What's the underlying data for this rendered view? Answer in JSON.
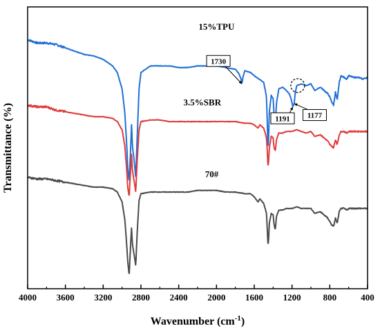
{
  "chart_data": {
    "type": "line",
    "xlabel": "Wavenumber (cm",
    "xlabel_sup": "-1",
    "xlabel_end": ")",
    "ylabel": "Transmittance (%)",
    "xlim": [
      4000,
      400
    ],
    "x_reversed": true,
    "x_ticks": [
      4000,
      3600,
      3200,
      2800,
      2400,
      2000,
      1600,
      1200,
      800,
      400
    ],
    "y_ticks_shown": false,
    "grid": false,
    "legend": "none",
    "series": [
      {
        "name": "15%TPU",
        "color": "#1f6fd6",
        "baseline": 9.0,
        "x": [
          4000,
          3900,
          3800,
          3700,
          3600,
          3500,
          3400,
          3300,
          3200,
          3100,
          3050,
          3000,
          2970,
          2950,
          2940,
          2925,
          2910,
          2900,
          2890,
          2870,
          2855,
          2840,
          2820,
          2800,
          2700,
          2600,
          2500,
          2400,
          2300,
          2200,
          2100,
          2000,
          1900,
          1800,
          1760,
          1740,
          1730,
          1720,
          1700,
          1640,
          1600,
          1500,
          1470,
          1460,
          1455,
          1450,
          1440,
          1420,
          1400,
          1390,
          1377,
          1365,
          1340,
          1300,
          1260,
          1230,
          1210,
          1191,
          1177,
          1165,
          1150,
          1100,
          1050,
          1000,
          960,
          900,
          860,
          820,
          800,
          780,
          760,
          740,
          721,
          700,
          680,
          650,
          620,
          600,
          550,
          500,
          450,
          400
        ],
        "values": [
          9.0,
          8.8,
          8.8,
          8.7,
          8.5,
          8.3,
          8.1,
          8.0,
          7.8,
          7.4,
          7.0,
          6.0,
          4.5,
          2.5,
          1.2,
          0.3,
          2.2,
          3.8,
          2.5,
          1.5,
          0.6,
          3.0,
          6.0,
          7.0,
          7.4,
          7.4,
          7.4,
          7.3,
          7.3,
          7.4,
          7.4,
          7.4,
          7.3,
          7.2,
          6.9,
          6.6,
          6.3,
          6.7,
          7.1,
          7.0,
          6.8,
          6.4,
          5.5,
          3.5,
          2.5,
          2.6,
          4.6,
          5.6,
          5.4,
          4.4,
          3.8,
          5.1,
          6.0,
          6.1,
          5.9,
          5.7,
          5.4,
          4.9,
          5.1,
          5.8,
          6.2,
          6.3,
          6.2,
          6.3,
          5.9,
          6.1,
          5.9,
          5.7,
          5.5,
          5.2,
          5.0,
          5.8,
          5.3,
          6.4,
          6.8,
          6.7,
          6.6,
          6.8,
          6.7,
          6.7,
          6.6,
          6.7
        ]
      },
      {
        "name": "3.5%SBR",
        "color": "#e03a3a",
        "baseline": 4.5,
        "x": [
          4000,
          3900,
          3800,
          3700,
          3600,
          3500,
          3400,
          3300,
          3200,
          3100,
          3050,
          3000,
          2970,
          2950,
          2940,
          2925,
          2910,
          2900,
          2890,
          2870,
          2855,
          2840,
          2820,
          2800,
          2700,
          2600,
          2500,
          2400,
          2300,
          2200,
          2100,
          2000,
          1900,
          1800,
          1700,
          1640,
          1600,
          1560,
          1540,
          1500,
          1470,
          1460,
          1455,
          1450,
          1440,
          1420,
          1400,
          1390,
          1377,
          1365,
          1340,
          1300,
          1260,
          1200,
          1150,
          1100,
          1050,
          1000,
          960,
          900,
          860,
          820,
          800,
          780,
          760,
          740,
          721,
          700,
          680,
          650,
          620,
          600,
          550,
          500,
          450,
          400
        ],
        "values": [
          5.0,
          4.9,
          4.9,
          4.7,
          4.6,
          4.5,
          4.4,
          4.3,
          4.3,
          4.2,
          4.0,
          3.5,
          2.5,
          1.0,
          0.0,
          -0.6,
          1.0,
          2.0,
          1.0,
          0.3,
          -0.3,
          1.6,
          3.5,
          4.0,
          4.1,
          4.1,
          4.0,
          4.0,
          4.0,
          4.0,
          4.0,
          4.0,
          4.0,
          4.0,
          3.9,
          3.9,
          3.8,
          3.6,
          3.8,
          3.6,
          3.0,
          2.0,
          1.3,
          1.4,
          2.4,
          3.1,
          3.0,
          2.4,
          2.2,
          2.9,
          3.3,
          3.3,
          3.4,
          3.4,
          3.5,
          3.4,
          3.3,
          3.4,
          3.1,
          3.2,
          3.0,
          2.8,
          2.6,
          2.5,
          2.4,
          2.9,
          2.6,
          3.2,
          3.4,
          3.4,
          3.3,
          3.4,
          3.4,
          3.4,
          3.4,
          3.4
        ]
      },
      {
        "name": "70#",
        "color": "#4a4a4a",
        "baseline": 0.0,
        "x": [
          4000,
          3900,
          3800,
          3700,
          3600,
          3500,
          3400,
          3300,
          3200,
          3100,
          3050,
          3000,
          2970,
          2950,
          2940,
          2925,
          2910,
          2900,
          2890,
          2870,
          2855,
          2840,
          2820,
          2800,
          2700,
          2600,
          2500,
          2400,
          2300,
          2200,
          2100,
          2000,
          1900,
          1800,
          1700,
          1640,
          1600,
          1560,
          1540,
          1500,
          1470,
          1460,
          1455,
          1450,
          1440,
          1420,
          1400,
          1390,
          1377,
          1365,
          1340,
          1300,
          1260,
          1200,
          1150,
          1100,
          1050,
          1000,
          960,
          900,
          860,
          820,
          800,
          780,
          760,
          740,
          721,
          700,
          680,
          650,
          620,
          600,
          550,
          500,
          450,
          400
        ],
        "values": [
          0.6,
          0.5,
          0.5,
          0.4,
          0.3,
          0.2,
          0.1,
          0.0,
          0.0,
          -0.1,
          -0.3,
          -0.9,
          -2.0,
          -3.6,
          -4.5,
          -5.4,
          -3.6,
          -2.5,
          -3.5,
          -4.2,
          -4.8,
          -2.8,
          -0.8,
          -0.4,
          -0.3,
          -0.3,
          -0.3,
          -0.3,
          -0.3,
          -0.2,
          -0.2,
          -0.2,
          -0.3,
          -0.3,
          -0.4,
          -0.4,
          -0.6,
          -0.9,
          -0.7,
          -1.0,
          -1.6,
          -2.8,
          -3.5,
          -3.4,
          -2.2,
          -1.6,
          -1.7,
          -2.3,
          -2.6,
          -1.8,
          -1.4,
          -1.4,
          -1.3,
          -1.3,
          -1.2,
          -1.3,
          -1.3,
          -1.3,
          -1.6,
          -1.5,
          -1.7,
          -1.9,
          -2.1,
          -2.3,
          -2.4,
          -1.9,
          -2.2,
          -1.5,
          -1.3,
          -1.3,
          -1.4,
          -1.3,
          -1.3,
          -1.3,
          -1.3,
          -1.3
        ]
      }
    ],
    "series_labels": [
      {
        "text": "15%TPU",
        "x": 2000,
        "y": 9.6
      },
      {
        "text": "3.5%SBR",
        "x": 2150,
        "y": 5.0
      },
      {
        "text": "70#",
        "x": 2050,
        "y": 0.6
      }
    ],
    "annotations": [
      {
        "text": "1730",
        "box_x": 1980,
        "box_y": 7.7,
        "point_x": 1730,
        "point_y": 6.3
      },
      {
        "text": "1191",
        "box_x": 1300,
        "box_y": 4.2,
        "point_x": 1191,
        "point_y": 4.9
      },
      {
        "text": "1177",
        "box_x": 960,
        "box_y": 4.4,
        "point_x": 1177,
        "point_y": 5.1
      }
    ],
    "highlight_circle": {
      "x": 1140,
      "y": 6.2
    }
  }
}
